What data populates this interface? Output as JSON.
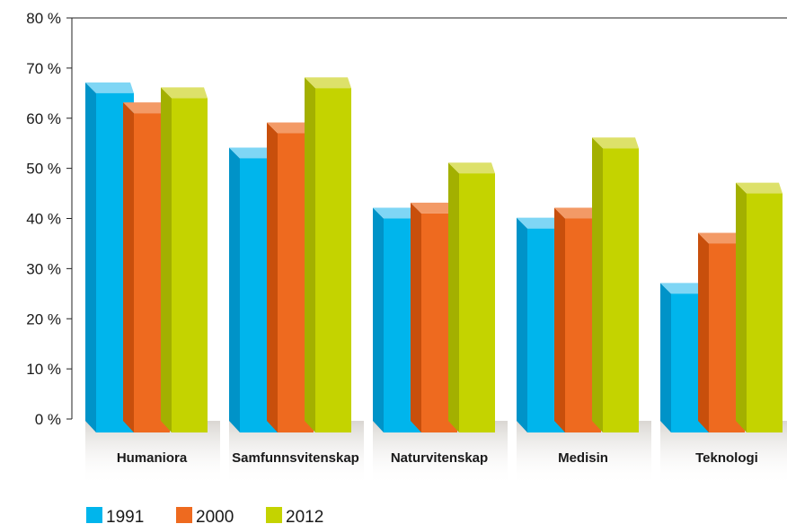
{
  "chart_data": {
    "type": "bar",
    "categories": [
      "Humaniora",
      "Samfunnsvitenskap",
      "Naturvitenskap",
      "Medisin",
      "Teknologi"
    ],
    "series": [
      {
        "name": "1991",
        "color": "#00b5ec",
        "side": "#0093c8",
        "top": "#7fd6f5",
        "values": [
          65,
          52,
          40,
          38,
          25
        ]
      },
      {
        "name": "2000",
        "color": "#ee6a1f",
        "side": "#c84f0c",
        "top": "#f39a66",
        "values": [
          61,
          57,
          41,
          40,
          35
        ]
      },
      {
        "name": "2012",
        "color": "#c4d300",
        "side": "#a3b000",
        "top": "#dde16a",
        "values": [
          64,
          66,
          49,
          54,
          45
        ]
      }
    ],
    "ylim": [
      0,
      80
    ],
    "yticks": [
      "0 %",
      "10 %",
      "20 %",
      "30 %",
      "40 %",
      "50 %",
      "60 %",
      "70 %",
      "80 %"
    ],
    "xlabel": "",
    "ylabel": "",
    "grid": false,
    "legend": "bottom-left"
  }
}
